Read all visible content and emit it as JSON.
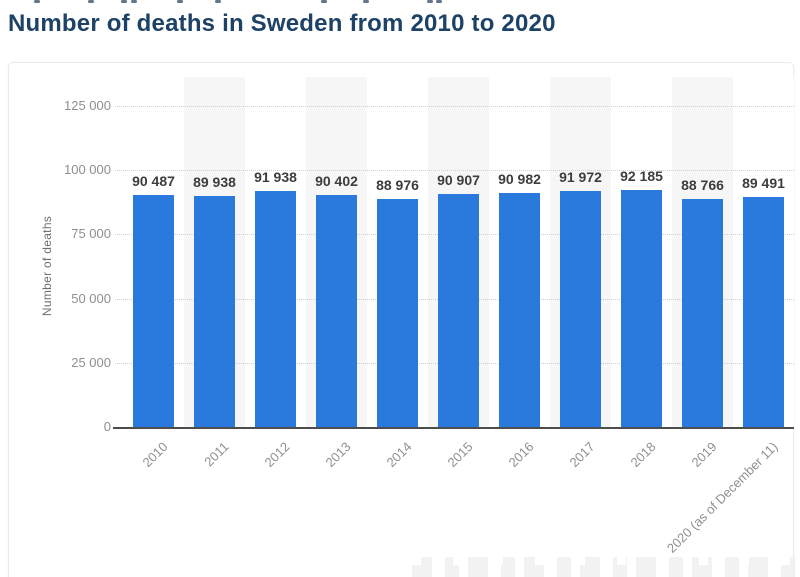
{
  "header": {
    "title": "Number of deaths in Sweden from 2010 to 2020"
  },
  "chart_data": {
    "type": "bar",
    "title": "Number of deaths in Sweden from 2010 to 2020",
    "xlabel": "",
    "ylabel": "Number of deaths",
    "categories": [
      "2010",
      "2011",
      "2012",
      "2013",
      "2014",
      "2015",
      "2016",
      "2017",
      "2018",
      "2019",
      "2020 (as of December 11)"
    ],
    "values": [
      90487,
      89938,
      91938,
      90402,
      88976,
      90907,
      90982,
      91972,
      92185,
      88766,
      89491
    ],
    "value_labels": [
      "90 487",
      "89 938",
      "91 938",
      "90 402",
      "88 976",
      "90 907",
      "90 982",
      "91 972",
      "92 185",
      "88 766",
      "89 491"
    ],
    "yticks": [
      0,
      25000,
      50000,
      75000,
      100000,
      125000
    ],
    "ytick_labels": [
      "0",
      "25 000",
      "50 000",
      "75 000",
      "100 000",
      "125 000"
    ],
    "ylim": [
      0,
      125000
    ],
    "grid": "horizontal-dotted",
    "legend": "none",
    "plot_background": "alternating vertical stripes per category",
    "bar_color": "#2a79dd",
    "stripe_color": "#f6f6f6",
    "title_color": "#1d4266"
  }
}
